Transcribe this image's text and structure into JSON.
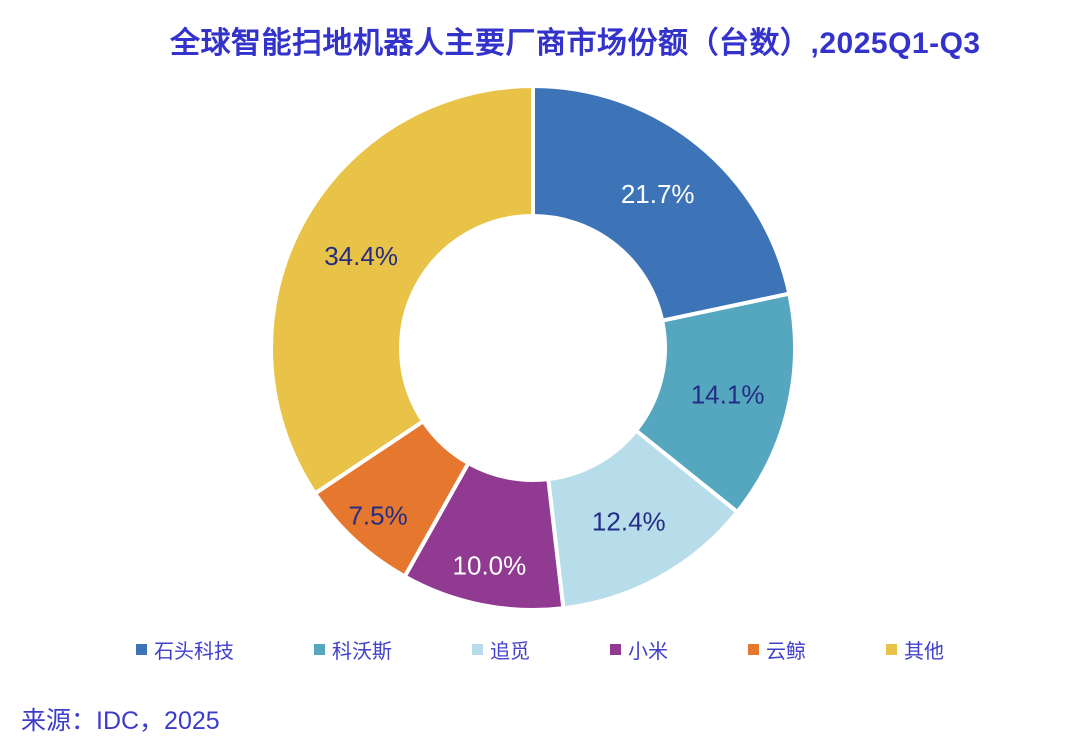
{
  "chart": {
    "title": "全球智能扫地机器人主要厂商市场份额（台数）,2025Q1-Q3",
    "source_text": "来源：IDC，2025"
  },
  "ink": {
    "title_color": "#3333cc",
    "legend_text_color": "#4040cc",
    "source_color": "#3c3ccc",
    "label_dark": "#232d85",
    "label_light": "#ffffff"
  },
  "chart_data": {
    "type": "pie",
    "subtype": "donut",
    "title": "全球智能扫地机器人主要厂商市场份额（台数）,2025Q1-Q3",
    "categories": [
      "石头科技",
      "科沃斯",
      "追觅",
      "小米",
      "云鲸",
      "其他"
    ],
    "values": [
      21.7,
      14.1,
      12.4,
      10.0,
      7.5,
      34.4
    ],
    "labels": [
      "21.7%",
      "14.1%",
      "12.4%",
      "10.0%",
      "7.5%",
      "34.4%"
    ],
    "ids": [
      "roborock",
      "ecovacs",
      "dreame",
      "xiaomi",
      "narwal",
      "others"
    ],
    "colors": [
      "#3d74b8",
      "#55a7bf",
      "#b6dde9",
      "#913a92",
      "#e5772f",
      "#e9c347"
    ],
    "label_colors": [
      "#ffffff",
      "#232d85",
      "#232d85",
      "#ffffff",
      "#232d85",
      "#232d85"
    ],
    "start_angle_deg": 0,
    "direction": "clockwise",
    "inner_radius_ratio": 0.504,
    "legend_position": "bottom",
    "source": "IDC, 2025"
  }
}
